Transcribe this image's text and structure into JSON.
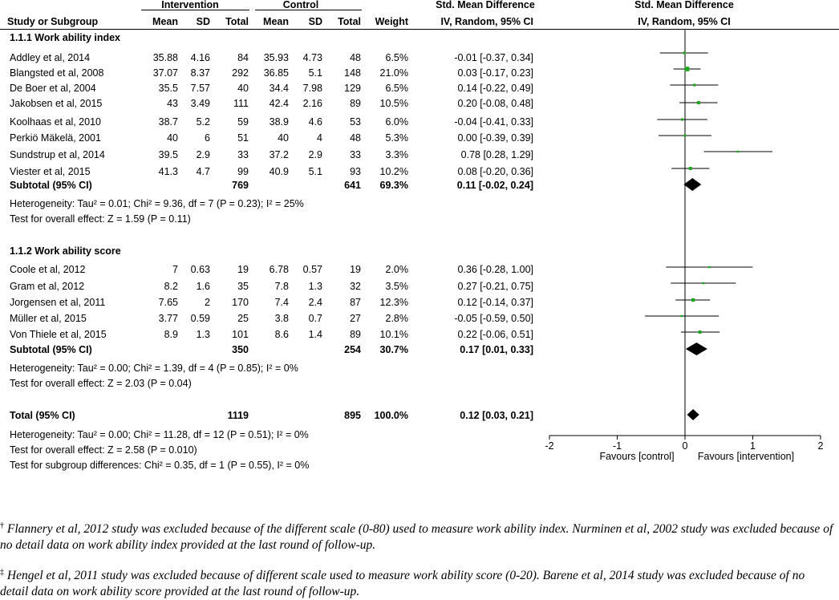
{
  "header": {
    "col_study": "Study or Subgroup",
    "group_intervention": "Intervention",
    "group_control": "Control",
    "col_mean": "Mean",
    "col_sd": "SD",
    "col_total": "Total",
    "col_weight": "Weight",
    "effect_title": "Std. Mean Difference",
    "effect_method": "IV, Random, 95% CI",
    "plot_title": "Std. Mean Difference",
    "plot_method": "IV, Random, 95% CI"
  },
  "subgroups": [
    {
      "title": "1.1.1 Work ability index",
      "studies": [
        {
          "name": "Addley et al, 2014",
          "i_mean": "35.88",
          "i_sd": "4.16",
          "i_total": "84",
          "c_mean": "35.93",
          "c_sd": "4.73",
          "c_total": "48",
          "weight": "6.5%",
          "ci": "-0.01 [-0.37, 0.34]"
        },
        {
          "name": "Blangsted et al, 2008",
          "i_mean": "37.07",
          "i_sd": "8.37",
          "i_total": "292",
          "c_mean": "36.85",
          "c_sd": "5.1",
          "c_total": "148",
          "weight": "21.0%",
          "ci": "0.03 [-0.17, 0.23]"
        },
        {
          "name": "De Boer et al,  2004",
          "i_mean": "35.5",
          "i_sd": "7.57",
          "i_total": "40",
          "c_mean": "34.4",
          "c_sd": "7.98",
          "c_total": "129",
          "weight": "6.5%",
          "ci": "0.14 [-0.22, 0.49]"
        },
        {
          "name": "Jakobsen et al, 2015",
          "i_mean": "43",
          "i_sd": "3.49",
          "i_total": "111",
          "c_mean": "42.4",
          "c_sd": "2.16",
          "c_total": "89",
          "weight": "10.5%",
          "ci": "0.20 [-0.08, 0.48]"
        },
        {
          "name": "Koolhaas et al, 2010",
          "i_mean": "38.7",
          "i_sd": "5.2",
          "i_total": "59",
          "c_mean": "38.9",
          "c_sd": "4.6",
          "c_total": "53",
          "weight": "6.0%",
          "ci": "-0.04 [-0.41, 0.33]"
        },
        {
          "name": "Perkiö Mäkelä, 2001",
          "i_mean": "40",
          "i_sd": "6",
          "i_total": "51",
          "c_mean": "40",
          "c_sd": "4",
          "c_total": "48",
          "weight": "5.3%",
          "ci": "0.00 [-0.39, 0.39]"
        },
        {
          "name": "Sundstrup et al, 2014",
          "i_mean": "39.5",
          "i_sd": "2.9",
          "i_total": "33",
          "c_mean": "37.2",
          "c_sd": "2.9",
          "c_total": "33",
          "weight": "3.3%",
          "ci": "0.78 [0.28, 1.29]"
        },
        {
          "name": "Viester et al, 2015",
          "i_mean": "41.3",
          "i_sd": "4.7",
          "i_total": "99",
          "c_mean": "40.9",
          "c_sd": "5.1",
          "c_total": "93",
          "weight": "10.2%",
          "ci": "0.08 [-0.20, 0.36]"
        }
      ],
      "subtotal": {
        "label": "Subtotal (95% CI)",
        "i_total": "769",
        "c_total": "641",
        "weight": "69.3%",
        "ci": "0.11 [-0.02, 0.24]"
      },
      "heterogeneity": "Heterogeneity: Tau² = 0.01; Chi² = 9.36, df = 7 (P = 0.23); I² = 25%",
      "overall": "Test for overall effect: Z = 1.59 (P = 0.11)"
    },
    {
      "title": "1.1.2 Work ability score",
      "studies": [
        {
          "name": "Coole et al, 2012",
          "i_mean": "7",
          "i_sd": "0.63",
          "i_total": "19",
          "c_mean": "6.78",
          "c_sd": "0.57",
          "c_total": "19",
          "weight": "2.0%",
          "ci": "0.36 [-0.28, 1.00]"
        },
        {
          "name": "Gram et al, 2012",
          "i_mean": "8.2",
          "i_sd": "1.6",
          "i_total": "35",
          "c_mean": "7.8",
          "c_sd": "1.3",
          "c_total": "32",
          "weight": "3.5%",
          "ci": "0.27 [-0.21, 0.75]"
        },
        {
          "name": "Jorgensen  et al, 2011",
          "i_mean": "7.65",
          "i_sd": "2",
          "i_total": "170",
          "c_mean": "7.4",
          "c_sd": "2.4",
          "c_total": "87",
          "weight": "12.3%",
          "ci": "0.12 [-0.14, 0.37]"
        },
        {
          "name": "Müller et al, 2015",
          "i_mean": "3.77",
          "i_sd": "0.59",
          "i_total": "25",
          "c_mean": "3.8",
          "c_sd": "0.7",
          "c_total": "27",
          "weight": "2.8%",
          "ci": "-0.05 [-0.59, 0.50]"
        },
        {
          "name": "Von Thiele et al, 2015",
          "i_mean": "8.9",
          "i_sd": "1.3",
          "i_total": "101",
          "c_mean": "8.6",
          "c_sd": "1.4",
          "c_total": "89",
          "weight": "10.1%",
          "ci": "0.22 [-0.06, 0.51]"
        }
      ],
      "subtotal": {
        "label": "Subtotal (95% CI)",
        "i_total": "350",
        "c_total": "254",
        "weight": "30.7%",
        "ci": "0.17 [0.01, 0.33]"
      },
      "heterogeneity": "Heterogeneity: Tau² = 0.00; Chi² = 1.39, df = 4 (P = 0.85); I² = 0%",
      "overall": "Test for overall effect: Z = 2.03 (P = 0.04)"
    }
  ],
  "total": {
    "label": "Total (95% CI)",
    "i_total": "1119",
    "c_total": "895",
    "weight": "100.0%",
    "ci": "0.12 [0.03, 0.21]",
    "heterogeneity": "Heterogeneity: Tau² = 0.00; Chi² = 11.28, df = 12 (P = 0.51); I² = 0%",
    "overall": "Test for overall effect: Z = 2.58 (P = 0.010)",
    "subgroup_diff": "Test for subgroup differences: Chi² = 0.35, df = 1 (P = 0.55), I² = 0%"
  },
  "axis": {
    "ticks": [
      "-2",
      "-1",
      "0",
      "1",
      "2"
    ],
    "favours_left": "Favours [control]",
    "favours_right": "Favours [intervention]"
  },
  "footnotes": {
    "note1_mark": "†",
    "note1": "Flannery et al, 2012 study was excluded because of the different scale (0-80) used to measure work ability index. Nurminen et al, 2002 study was excluded because of no detail data on work ability index provided at the last round of follow-up.",
    "note2_mark": "‡",
    "note2": "Hengel et al, 2011 study was excluded because of different scale used to measure work ability score (0-20). Barene et al, 2014 study was excluded because of no detail data on work ability score provided at the last round of follow-up."
  },
  "colors": {
    "study_marker": "#1fa81f",
    "diamond": "#000000",
    "lines": "#000000"
  },
  "chart_data": {
    "type": "forest",
    "title": "Std. Mean Difference",
    "subtitle": "IV, Random, 95% CI",
    "xlim": [
      -2,
      2
    ],
    "xticks": [
      -2,
      -1,
      0,
      1,
      2
    ],
    "xlabel_left": "Favours [control]",
    "xlabel_right": "Favours [intervention]",
    "studies": [
      {
        "name": "Addley et al, 2014",
        "est": -0.01,
        "lo": -0.37,
        "hi": 0.34,
        "weight": 6.5
      },
      {
        "name": "Blangsted et al, 2008",
        "est": 0.03,
        "lo": -0.17,
        "hi": 0.23,
        "weight": 21.0
      },
      {
        "name": "De Boer et al,  2004",
        "est": 0.14,
        "lo": -0.22,
        "hi": 0.49,
        "weight": 6.5
      },
      {
        "name": "Jakobsen et al, 2015",
        "est": 0.2,
        "lo": -0.08,
        "hi": 0.48,
        "weight": 10.5
      },
      {
        "name": "Koolhaas et al, 2010",
        "est": -0.04,
        "lo": -0.41,
        "hi": 0.33,
        "weight": 6.0
      },
      {
        "name": "Perkiö Mäkelä, 2001",
        "est": 0.0,
        "lo": -0.39,
        "hi": 0.39,
        "weight": 5.3
      },
      {
        "name": "Sundstrup et al, 2014",
        "est": 0.78,
        "lo": 0.28,
        "hi": 1.29,
        "weight": 3.3
      },
      {
        "name": "Viester et al, 2015",
        "est": 0.08,
        "lo": -0.2,
        "hi": 0.36,
        "weight": 10.2
      },
      {
        "name": "Coole et al, 2012",
        "est": 0.36,
        "lo": -0.28,
        "hi": 1.0,
        "weight": 2.0
      },
      {
        "name": "Gram et al, 2012",
        "est": 0.27,
        "lo": -0.21,
        "hi": 0.75,
        "weight": 3.5
      },
      {
        "name": "Jorgensen  et al, 2011",
        "est": 0.12,
        "lo": -0.14,
        "hi": 0.37,
        "weight": 12.3
      },
      {
        "name": "Müller et al, 2015",
        "est": -0.05,
        "lo": -0.59,
        "hi": 0.5,
        "weight": 2.8
      },
      {
        "name": "Von Thiele et al, 2015",
        "est": 0.22,
        "lo": -0.06,
        "hi": 0.51,
        "weight": 10.1
      }
    ],
    "pooled": [
      {
        "name": "Subtotal 1.1.1 (95% CI)",
        "est": 0.11,
        "lo": -0.02,
        "hi": 0.24
      },
      {
        "name": "Subtotal 1.1.2 (95% CI)",
        "est": 0.17,
        "lo": 0.01,
        "hi": 0.33
      },
      {
        "name": "Total (95% CI)",
        "est": 0.12,
        "lo": 0.03,
        "hi": 0.21
      }
    ]
  }
}
